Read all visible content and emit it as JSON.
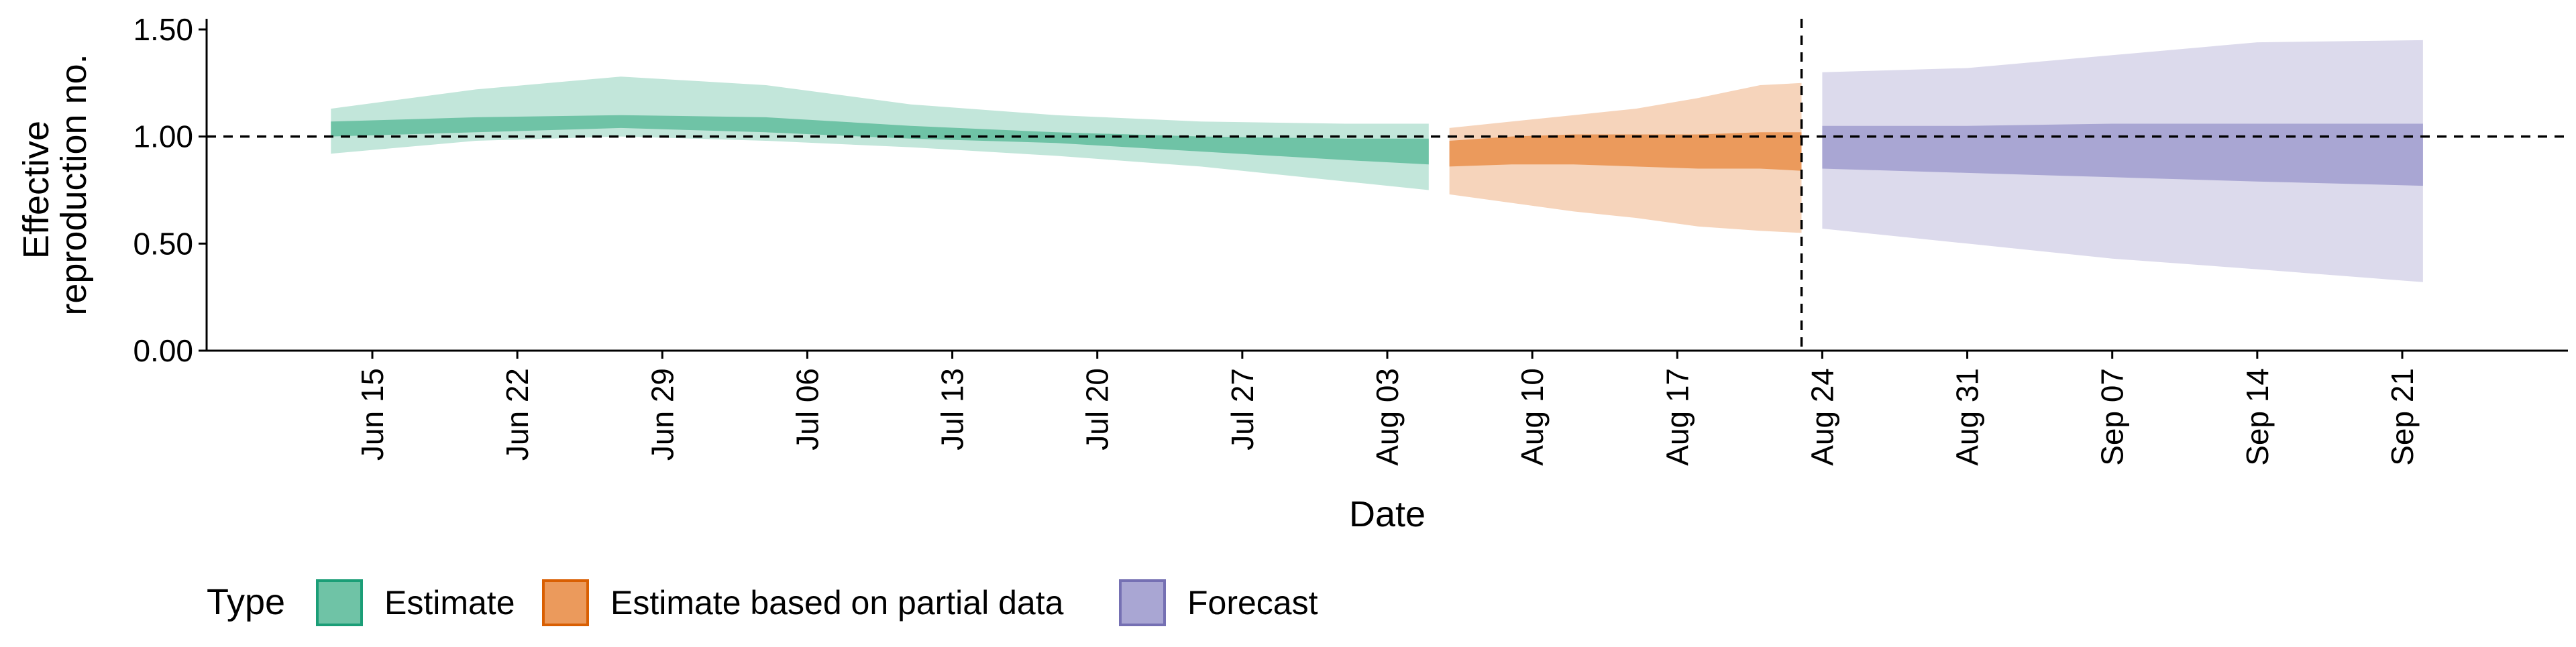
{
  "chart_data": {
    "type": "area",
    "xlabel": "Date",
    "ylabel_lines": [
      "Effective",
      "reproduction no."
    ],
    "ylim": [
      0,
      1.55
    ],
    "y_ticks": [
      0.0,
      0.5,
      1.0,
      1.5
    ],
    "y_tick_labels": [
      "0.00",
      "0.50",
      "1.00",
      "1.50"
    ],
    "x_start": "2020-06-07",
    "x_end": "2020-09-29",
    "x_ticks": [
      "2020-06-15",
      "2020-06-22",
      "2020-06-29",
      "2020-07-06",
      "2020-07-13",
      "2020-07-20",
      "2020-07-27",
      "2020-08-03",
      "2020-08-10",
      "2020-08-17",
      "2020-08-24",
      "2020-08-31",
      "2020-09-07",
      "2020-09-14",
      "2020-09-21"
    ],
    "x_tick_labels": [
      "Jun 15",
      "Jun 22",
      "Jun 29",
      "Jul 06",
      "Jul 13",
      "Jul 20",
      "Jul 27",
      "Aug 03",
      "Aug 10",
      "Aug 17",
      "Aug 24",
      "Aug 31",
      "Sep 07",
      "Sep 14",
      "Sep 21"
    ],
    "reference_line_y": 1.0,
    "forecast_date_line": "2020-08-23",
    "legend": {
      "title": "Type",
      "position": "bottom-left",
      "entries": [
        {
          "label": "Estimate",
          "fill": "#6fc3a6",
          "stroke": "#1b9e77"
        },
        {
          "label": "Estimate based on partial data",
          "fill": "#eb9a5c",
          "stroke": "#d95f02"
        },
        {
          "label": "Forecast",
          "fill": "#a9a6d3",
          "stroke": "#7570b3"
        }
      ]
    },
    "series": [
      {
        "name": "Estimate",
        "outer_color": "#c2e6da",
        "inner_color": "#6fc3a6",
        "x": [
          "2020-06-13",
          "2020-06-20",
          "2020-06-27",
          "2020-07-04",
          "2020-07-11",
          "2020-07-18",
          "2020-07-25",
          "2020-08-01",
          "2020-08-05"
        ],
        "lower90": [
          0.92,
          0.98,
          1.0,
          0.98,
          0.95,
          0.91,
          0.86,
          0.79,
          0.75
        ],
        "upper90": [
          1.13,
          1.22,
          1.28,
          1.24,
          1.15,
          1.1,
          1.07,
          1.06,
          1.06
        ],
        "lower50": [
          1.0,
          1.02,
          1.04,
          1.02,
          0.99,
          0.97,
          0.93,
          0.89,
          0.87
        ],
        "upper50": [
          1.07,
          1.09,
          1.1,
          1.09,
          1.05,
          1.02,
          1.0,
          0.99,
          0.99
        ]
      },
      {
        "name": "Estimate based on partial data",
        "outer_color": "#f6d4bb",
        "inner_color": "#eb9a5c",
        "x": [
          "2020-08-06",
          "2020-08-09",
          "2020-08-12",
          "2020-08-15",
          "2020-08-18",
          "2020-08-21",
          "2020-08-23"
        ],
        "lower90": [
          0.73,
          0.69,
          0.65,
          0.62,
          0.58,
          0.56,
          0.55
        ],
        "upper90": [
          1.04,
          1.07,
          1.1,
          1.13,
          1.18,
          1.24,
          1.25
        ],
        "lower50": [
          0.86,
          0.87,
          0.87,
          0.86,
          0.85,
          0.85,
          0.84
        ],
        "upper50": [
          0.98,
          1.0,
          1.01,
          1.01,
          1.01,
          1.02,
          1.02
        ]
      },
      {
        "name": "Forecast",
        "outer_color": "#dcdaec",
        "inner_color": "#a9a6d3",
        "x": [
          "2020-08-24",
          "2020-08-31",
          "2020-09-07",
          "2020-09-14",
          "2020-09-22"
        ],
        "lower90": [
          0.57,
          0.5,
          0.43,
          0.38,
          0.32
        ],
        "upper90": [
          1.3,
          1.32,
          1.38,
          1.44,
          1.45
        ],
        "lower50": [
          0.85,
          0.83,
          0.81,
          0.79,
          0.77
        ],
        "upper50": [
          1.05,
          1.05,
          1.06,
          1.06,
          1.06
        ]
      }
    ]
  }
}
